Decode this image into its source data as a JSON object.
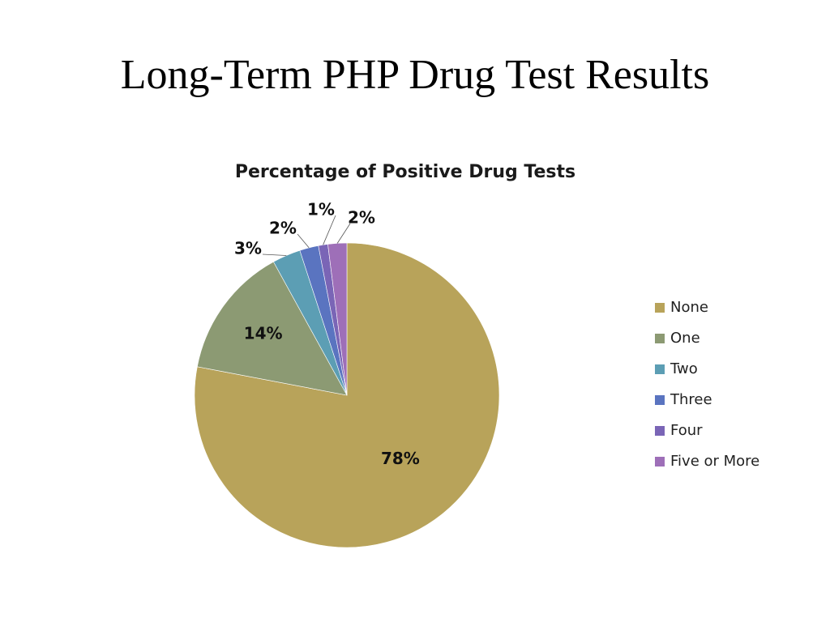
{
  "slide": {
    "title": "Long-Term PHP Drug Test Results"
  },
  "chart_data": {
    "type": "pie",
    "title": "Percentage of Positive Drug Tests",
    "categories": [
      "None",
      "One",
      "Two",
      "Three",
      "Four",
      "Five or More"
    ],
    "values": [
      78,
      14,
      3,
      2,
      1,
      2
    ],
    "data_labels": [
      "78%",
      "14%",
      "3%",
      "2%",
      "1%",
      "2%"
    ],
    "colors": [
      "#B8A35A",
      "#8C9A73",
      "#5C9EB4",
      "#5A74C0",
      "#7A65B6",
      "#9E6FB8"
    ],
    "legend_position": "right"
  }
}
